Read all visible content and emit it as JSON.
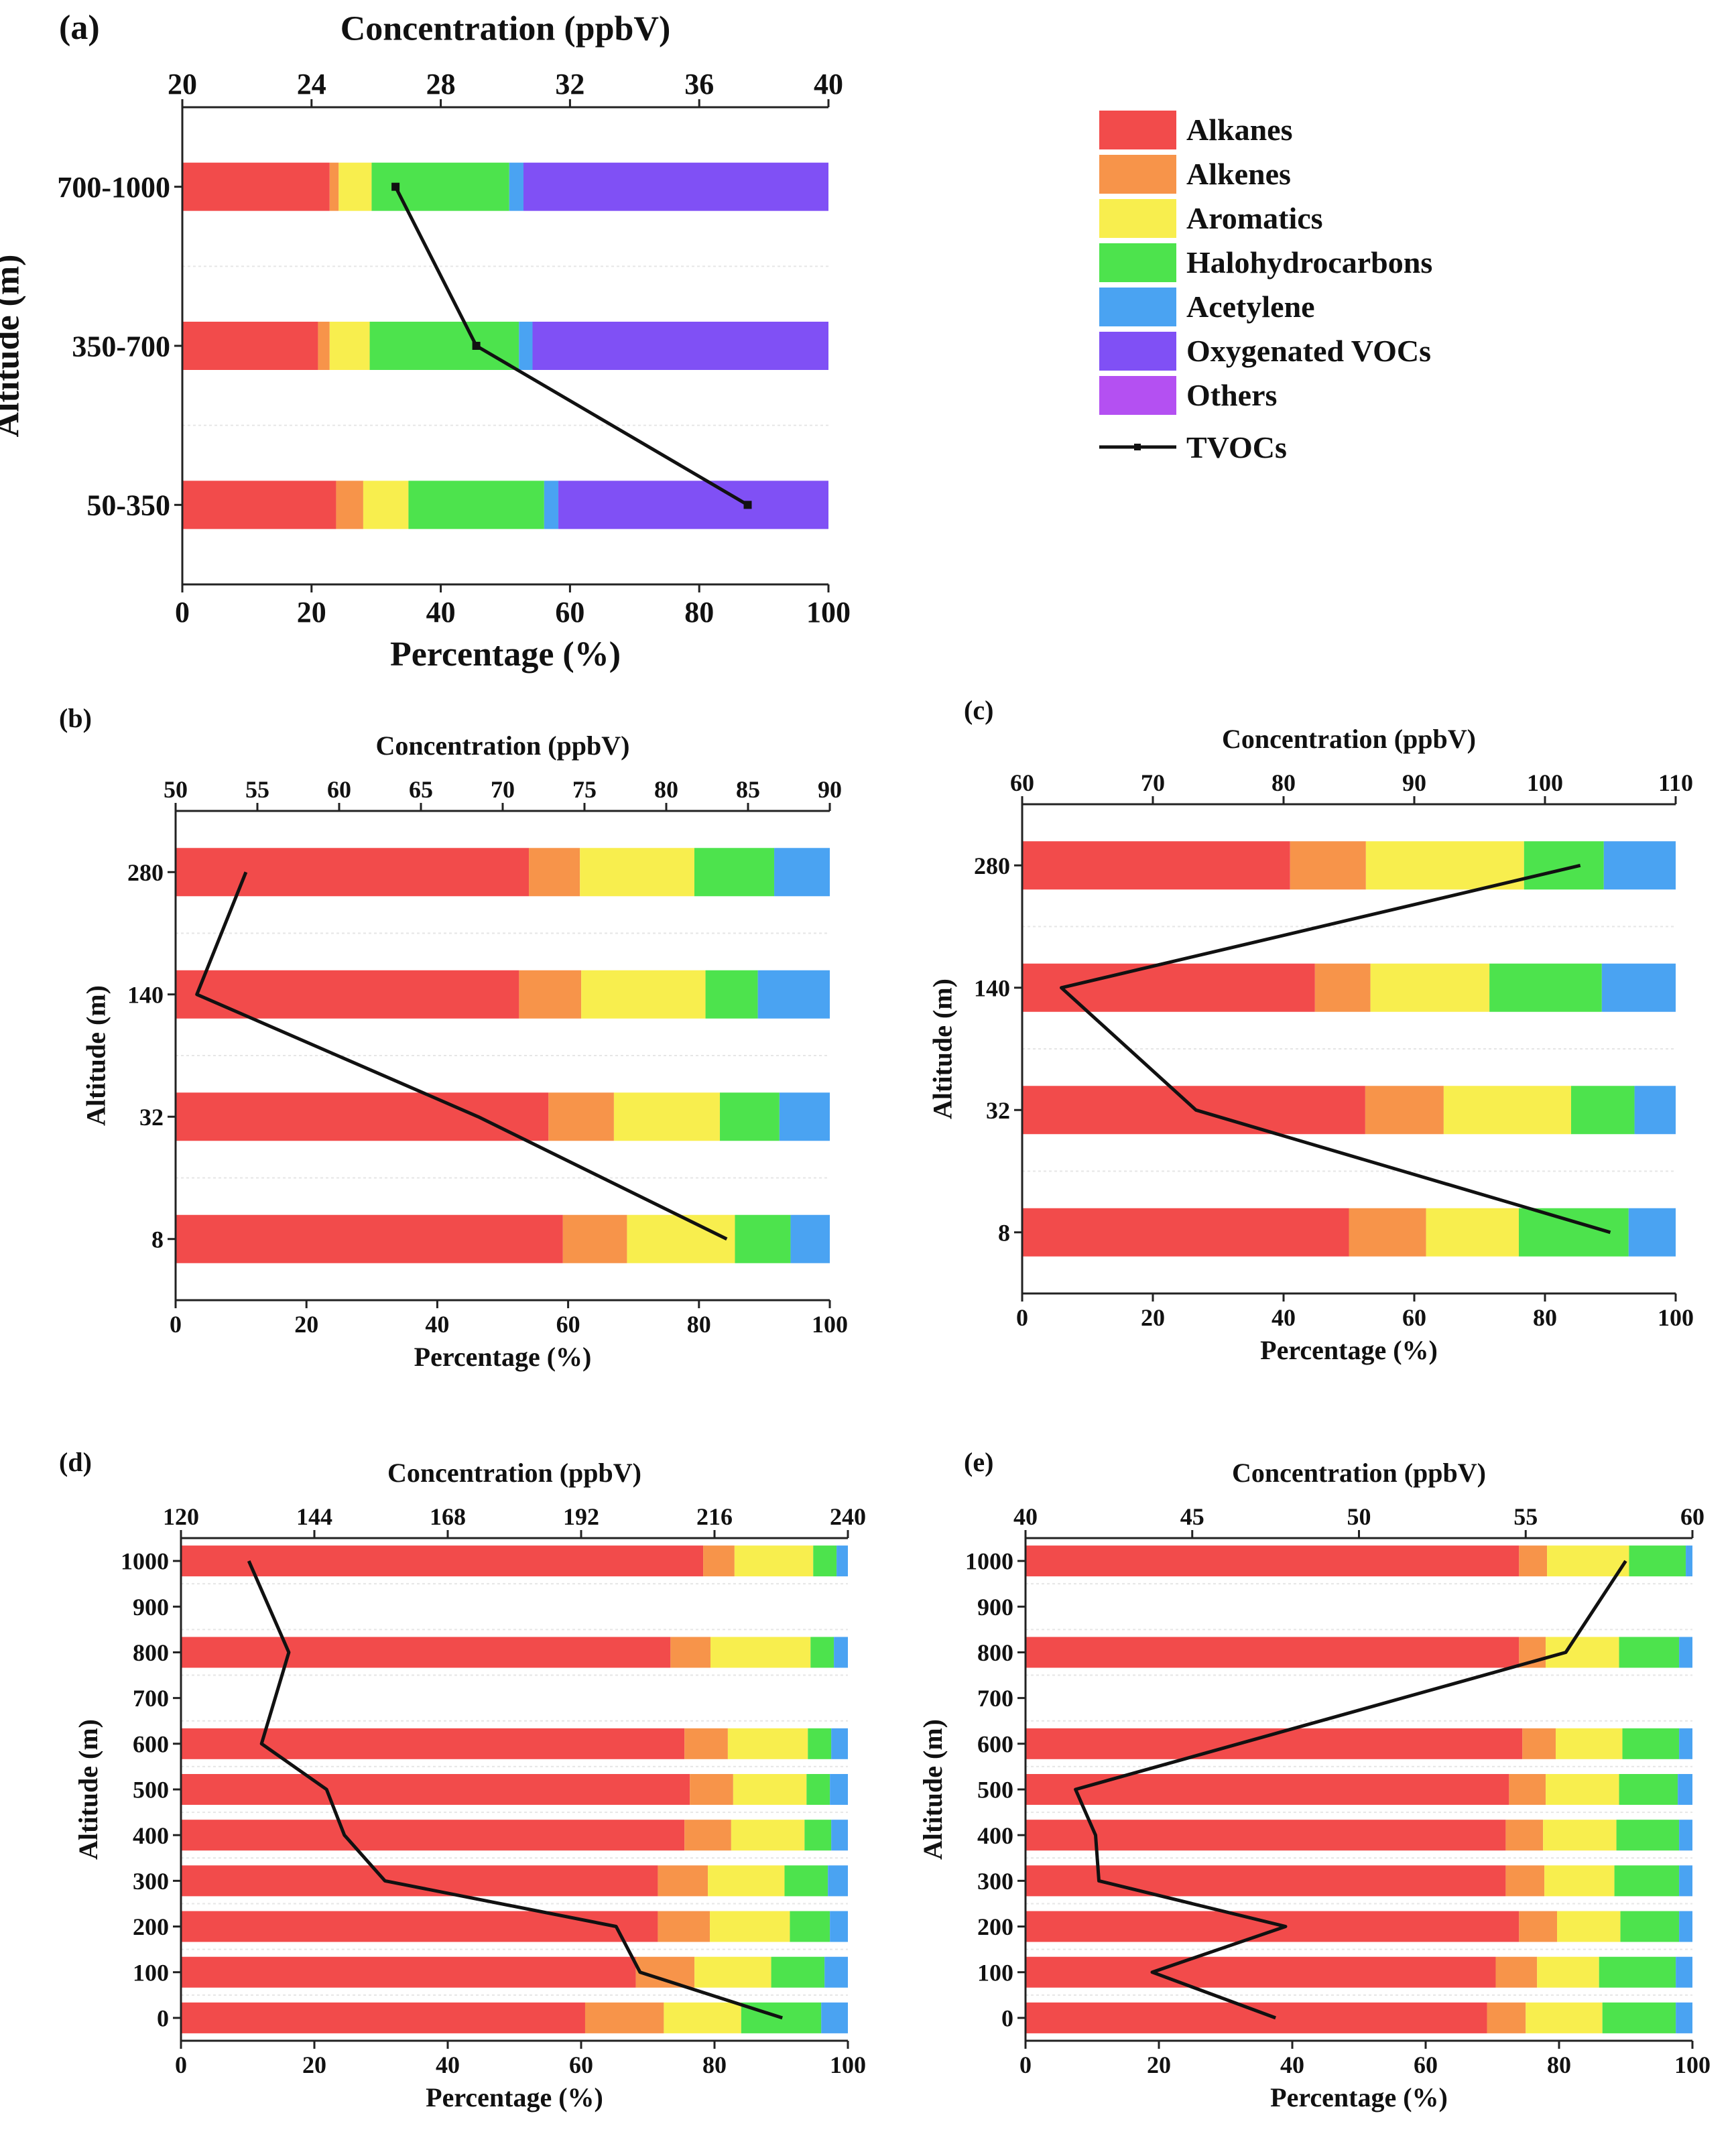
{
  "categories": [
    {
      "name": "Alkanes",
      "color": "#f24b4b"
    },
    {
      "name": "Alkenes",
      "color": "#f7944a"
    },
    {
      "name": "Aromatics",
      "color": "#f8ee4e"
    },
    {
      "name": "Halohydrocarbons",
      "color": "#4de34d"
    },
    {
      "name": "Acetylene",
      "color": "#4aa3f2"
    },
    {
      "name": "Oxygenated VOCs",
      "color": "#8050f5"
    },
    {
      "name": "Others",
      "color": "#b450f2"
    }
  ],
  "line_label": "TVOCs",
  "line_color": "#111111",
  "chart_data": [
    {
      "panel": "(a)",
      "type": "bar",
      "title_top": "Concentration (ppbV)",
      "xlabel": "Percentage (%)",
      "ylabel": "Altitude (m)",
      "xlim": [
        0,
        100
      ],
      "xticks": [
        0,
        20,
        40,
        60,
        80,
        100
      ],
      "top_lim": [
        20,
        40
      ],
      "top_ticks": [
        20,
        24,
        28,
        32,
        36,
        40
      ],
      "categories": [
        "700-1000",
        "350-700",
        "50-350"
      ],
      "series": [
        {
          "name": "Alkanes",
          "values": [
            22.8,
            21,
            23.8
          ]
        },
        {
          "name": "Alkenes",
          "values": [
            1.4,
            1.8,
            4.2
          ]
        },
        {
          "name": "Aromatics",
          "values": [
            5.1,
            6.2,
            7.0
          ]
        },
        {
          "name": "Halohydrocarbons",
          "values": [
            21.3,
            23.1,
            21.0
          ]
        },
        {
          "name": "Acetylene",
          "values": [
            2.2,
            2.1,
            2.2
          ]
        },
        {
          "name": "Oxygenated VOCs",
          "values": [
            47.2,
            45.8,
            41.8
          ]
        },
        {
          "name": "Others",
          "values": [
            0,
            0,
            0
          ]
        }
      ],
      "tvocs": [
        26.6,
        29.1,
        37.5
      ]
    },
    {
      "panel": "(b)",
      "type": "bar",
      "title_top": "Concentration (ppbV)",
      "xlabel": "Percentage (%)",
      "ylabel": "Altitude (m)",
      "xlim": [
        0,
        100
      ],
      "xticks": [
        0,
        20,
        40,
        60,
        80,
        100
      ],
      "top_lim": [
        50,
        90
      ],
      "top_ticks": [
        50,
        55,
        60,
        65,
        70,
        75,
        80,
        85,
        90
      ],
      "categories": [
        "280",
        "140",
        "32",
        "8"
      ],
      "series": [
        {
          "name": "Alkanes",
          "values": [
            54,
            52.5,
            57,
            59.2
          ]
        },
        {
          "name": "Alkenes",
          "values": [
            7.8,
            9.5,
            10,
            9.8
          ]
        },
        {
          "name": "Aromatics",
          "values": [
            17.5,
            19,
            16.2,
            16.5
          ]
        },
        {
          "name": "Halohydrocarbons",
          "values": [
            12.2,
            8,
            9.1,
            8.5
          ]
        },
        {
          "name": "Acetylene",
          "values": [
            8.5,
            11,
            7.7,
            6
          ]
        },
        {
          "name": "Oxygenated VOCs",
          "values": [
            0,
            0,
            0,
            0
          ]
        },
        {
          "name": "Others",
          "values": [
            0,
            0,
            0,
            0
          ]
        }
      ],
      "tvocs": [
        54.3,
        51.3,
        68.5,
        83.7
      ]
    },
    {
      "panel": "(c)",
      "type": "bar",
      "title_top": "Concentration (ppbV)",
      "xlabel": "Percentage (%)",
      "ylabel": "Altitude (m)",
      "xlim": [
        0,
        100
      ],
      "xticks": [
        0,
        20,
        40,
        60,
        80,
        100
      ],
      "top_lim": [
        60,
        110
      ],
      "top_ticks": [
        60,
        70,
        80,
        90,
        100,
        110
      ],
      "categories": [
        "280",
        "140",
        "32",
        "8"
      ],
      "series": [
        {
          "name": "Alkanes",
          "values": [
            41,
            44.8,
            52.5,
            50
          ]
        },
        {
          "name": "Alkenes",
          "values": [
            11.6,
            8.5,
            12,
            11.8
          ]
        },
        {
          "name": "Aromatics",
          "values": [
            24.2,
            18.2,
            19.5,
            14.2
          ]
        },
        {
          "name": "Halohydrocarbons",
          "values": [
            12.2,
            17.2,
            9.7,
            16.8
          ]
        },
        {
          "name": "Acetylene",
          "values": [
            11,
            11.3,
            6.3,
            7.2
          ]
        },
        {
          "name": "Oxygenated VOCs",
          "values": [
            0,
            0,
            0,
            0
          ]
        },
        {
          "name": "Others",
          "values": [
            0,
            0,
            0,
            0
          ]
        }
      ],
      "tvocs": [
        102.7,
        63,
        73.3,
        105
      ]
    },
    {
      "panel": "(d)",
      "type": "bar",
      "title_top": "Concentration (ppbV)",
      "xlabel": "Percentage (%)",
      "ylabel": "Altitude (m)",
      "xlim": [
        0,
        100
      ],
      "xticks": [
        0,
        20,
        40,
        60,
        80,
        100
      ],
      "top_lim": [
        120,
        240
      ],
      "top_ticks": [
        120,
        144,
        168,
        192,
        216,
        240
      ],
      "categories": [
        "1000",
        "900",
        "800",
        "700",
        "600",
        "500",
        "400",
        "300",
        "200",
        "100",
        "0"
      ],
      "series": [
        {
          "name": "Alkanes",
          "values": [
            78.3,
            null,
            73.4,
            null,
            75.5,
            76.3,
            75.5,
            71.5,
            71.5,
            68.2,
            60.6
          ]
        },
        {
          "name": "Alkenes",
          "values": [
            4.7,
            null,
            6,
            null,
            6.5,
            6.5,
            7,
            7.5,
            7.8,
            8.8,
            11.8
          ]
        },
        {
          "name": "Aromatics",
          "values": [
            11.8,
            null,
            15,
            null,
            12,
            11,
            11,
            11.5,
            12,
            11.5,
            11.6
          ]
        },
        {
          "name": "Halohydrocarbons",
          "values": [
            3.5,
            null,
            3.5,
            null,
            3.5,
            3.5,
            4,
            6.5,
            6,
            8,
            12
          ]
        },
        {
          "name": "Acetylene",
          "values": [
            1.7,
            null,
            2.1,
            null,
            2.5,
            2.7,
            2.5,
            3,
            2.7,
            3.5,
            4
          ]
        },
        {
          "name": "Oxygenated VOCs",
          "values": [
            0,
            null,
            0,
            null,
            0,
            0,
            0,
            0,
            0,
            0,
            0
          ]
        },
        {
          "name": "Others",
          "values": [
            0,
            null,
            0,
            null,
            0,
            0,
            0,
            0,
            0,
            0,
            0
          ]
        }
      ],
      "tvocs": [
        132.2,
        null,
        139.4,
        null,
        134.5,
        146.2,
        149.4,
        156.7,
        198.3,
        202.6,
        228.2
      ]
    },
    {
      "panel": "(e)",
      "type": "bar",
      "title_top": "Concentration (ppbV)",
      "xlabel": "Percentage (%)",
      "ylabel": "Altitude (m)",
      "xlim": [
        0,
        100
      ],
      "xticks": [
        0,
        20,
        40,
        60,
        80,
        100
      ],
      "top_lim": [
        40,
        60
      ],
      "top_ticks": [
        40,
        45,
        50,
        55,
        60
      ],
      "categories": [
        "1000",
        "900",
        "800",
        "700",
        "600",
        "500",
        "400",
        "300",
        "200",
        "100",
        "0"
      ],
      "series": [
        {
          "name": "Alkanes",
          "values": [
            74,
            null,
            74,
            null,
            74.5,
            72.5,
            72,
            72,
            74,
            70.5,
            69.2
          ]
        },
        {
          "name": "Alkenes",
          "values": [
            4.2,
            null,
            4,
            null,
            5,
            5.5,
            5.6,
            5.8,
            5.7,
            6.2,
            5.8
          ]
        },
        {
          "name": "Aromatics",
          "values": [
            12.3,
            null,
            11,
            null,
            10,
            11,
            11,
            10.5,
            9.5,
            9.3,
            11.5
          ]
        },
        {
          "name": "Halohydrocarbons",
          "values": [
            8.5,
            null,
            9,
            null,
            8.5,
            8.8,
            9.4,
            9.7,
            8.8,
            11.5,
            11
          ]
        },
        {
          "name": "Acetylene",
          "values": [
            1,
            null,
            2,
            null,
            2,
            2.2,
            2,
            2,
            2,
            2.5,
            2.5
          ]
        },
        {
          "name": "Oxygenated VOCs",
          "values": [
            0,
            null,
            0,
            null,
            0,
            0,
            0,
            0,
            0,
            0,
            0
          ]
        },
        {
          "name": "Others",
          "values": [
            0,
            null,
            0,
            null,
            0,
            0,
            0,
            0,
            0,
            0,
            0
          ]
        }
      ],
      "tvocs": [
        58,
        null,
        56.2,
        null,
        null,
        41.5,
        42.1,
        42.2,
        47.8,
        43.8,
        47.5
      ]
    }
  ]
}
